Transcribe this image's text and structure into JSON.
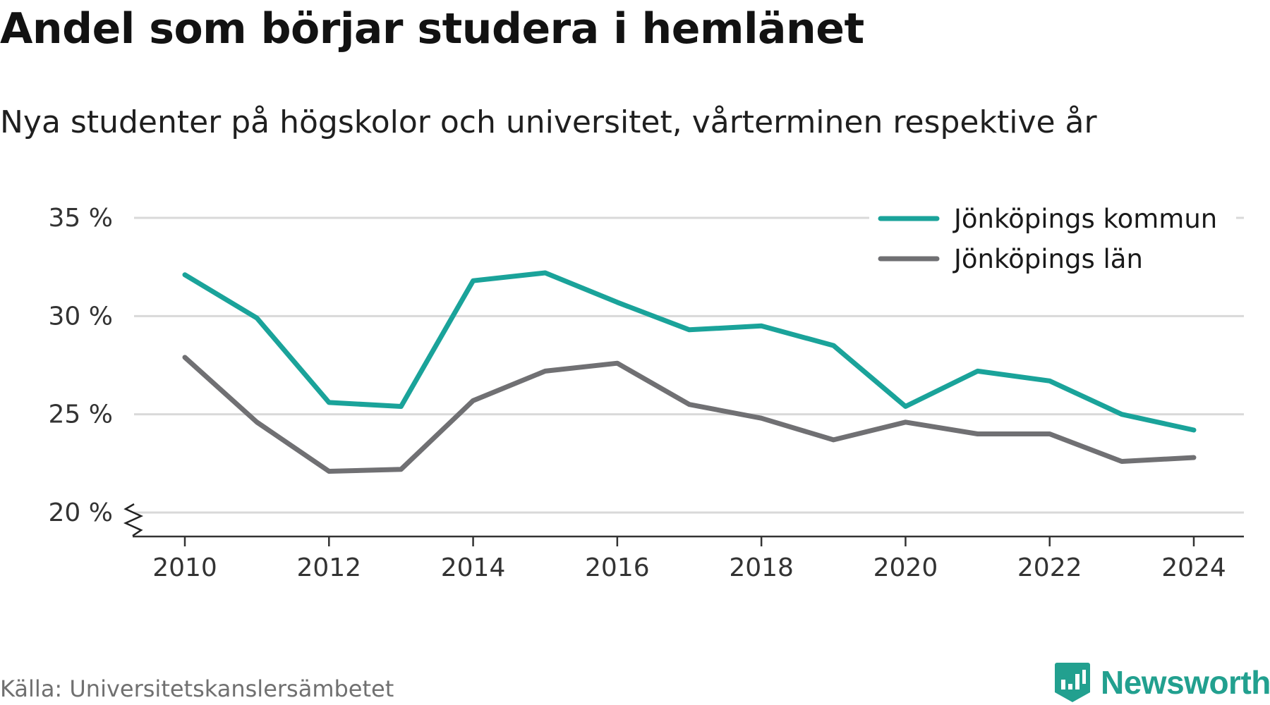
{
  "title": "Andel som börjar studera i hemlänet",
  "subtitle": "Nya studenter på högskolor och universitet, vårterminen respektive år",
  "source": "Källa: Universitetskanslersämbetet",
  "logo": "Newsworthy",
  "colors": {
    "kommun": "#1aa39a",
    "lan": "#707073",
    "grid": "#d9d9d9",
    "axis": "#333333",
    "brand": "#22a08f"
  },
  "chart_data": {
    "type": "line",
    "x": [
      2010,
      2011,
      2012,
      2013,
      2014,
      2015,
      2016,
      2017,
      2018,
      2019,
      2020,
      2021,
      2022,
      2023,
      2024
    ],
    "x_ticks": [
      "2010",
      "2012",
      "2014",
      "2016",
      "2018",
      "2020",
      "2022",
      "2024"
    ],
    "y_ticks": [
      "20 %",
      "25 %",
      "30 %",
      "35 %"
    ],
    "ylim": [
      20,
      35
    ],
    "y_axis_break": true,
    "grid": true,
    "legend_position": "top-right",
    "series": [
      {
        "name": "Jönköpings kommun",
        "color": "#1aa39a",
        "values": [
          32.1,
          29.9,
          25.6,
          25.4,
          31.8,
          32.2,
          30.7,
          29.3,
          29.5,
          28.5,
          25.4,
          27.2,
          26.7,
          25.0,
          24.2
        ]
      },
      {
        "name": "Jönköpings län",
        "color": "#707073",
        "values": [
          27.9,
          24.6,
          22.1,
          22.2,
          25.7,
          27.2,
          27.6,
          25.5,
          24.8,
          23.7,
          24.6,
          24.0,
          24.0,
          22.6,
          22.8
        ]
      }
    ]
  }
}
